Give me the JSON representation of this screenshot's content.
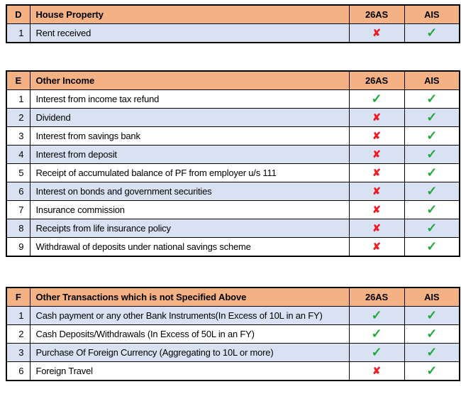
{
  "colors": {
    "header_bg": "#F4B183",
    "row_bg": "#FFFFFF",
    "row_shaded_bg": "#D9E2F3",
    "border": "#000000",
    "check_green": "#1FA83C",
    "cross_red": "#EE1C25"
  },
  "marks": {
    "check": {
      "glyph": "✓",
      "color": "#1FA83C"
    },
    "cross": {
      "glyph": "✘",
      "color": "#EE1C25"
    }
  },
  "columns": {
    "c26as": "26AS",
    "ais": "AIS"
  },
  "tables": [
    {
      "section": "D",
      "title": "House Property",
      "rows": [
        {
          "num": "1",
          "label": "Rent received",
          "v26as": "cross",
          "vais": "check",
          "shaded": true
        }
      ]
    },
    {
      "section": "E",
      "title": "Other Income",
      "rows": [
        {
          "num": "1",
          "label": "Interest from income tax refund",
          "v26as": "check",
          "vais": "check",
          "shaded": false
        },
        {
          "num": "2",
          "label": "Dividend",
          "v26as": "cross",
          "vais": "check",
          "shaded": true
        },
        {
          "num": "3",
          "label": "Interest from savings bank",
          "v26as": "cross",
          "vais": "check",
          "shaded": false
        },
        {
          "num": "4",
          "label": "Interest from deposit",
          "v26as": "cross",
          "vais": "check",
          "shaded": true
        },
        {
          "num": "5",
          "label": "Receipt of accumulated balance of PF from employer u/s 111",
          "v26as": "cross",
          "vais": "check",
          "shaded": false
        },
        {
          "num": "6",
          "label": "Interest on bonds and government securities",
          "v26as": "cross",
          "vais": "check",
          "shaded": true
        },
        {
          "num": "7",
          "label": "Insurance commission",
          "v26as": "cross",
          "vais": "check",
          "shaded": false
        },
        {
          "num": "8",
          "label": "Receipts from life insurance policy",
          "v26as": "cross",
          "vais": "check",
          "shaded": true
        },
        {
          "num": "9",
          "label": "Withdrawal of deposits under national savings scheme",
          "v26as": "cross",
          "vais": "check",
          "shaded": false
        }
      ]
    },
    {
      "section": "F",
      "title": "Other Transactions which is not Specified Above",
      "rows": [
        {
          "num": "1",
          "label": "Cash payment or any other Bank Instruments(In Excess of 10L in an FY)",
          "v26as": "check",
          "vais": "check",
          "shaded": true
        },
        {
          "num": "2",
          "label": "Cash Deposits/Withdrawals (In Excess of 50L in an FY)",
          "v26as": "check",
          "vais": "check",
          "shaded": false
        },
        {
          "num": "3",
          "label": "Purchase Of Foreign Currency (Aggregating to 10L or more)",
          "v26as": "check",
          "vais": "check",
          "shaded": true
        },
        {
          "num": "6",
          "label": "Foreign Travel",
          "v26as": "cross",
          "vais": "check",
          "shaded": false
        }
      ]
    }
  ]
}
